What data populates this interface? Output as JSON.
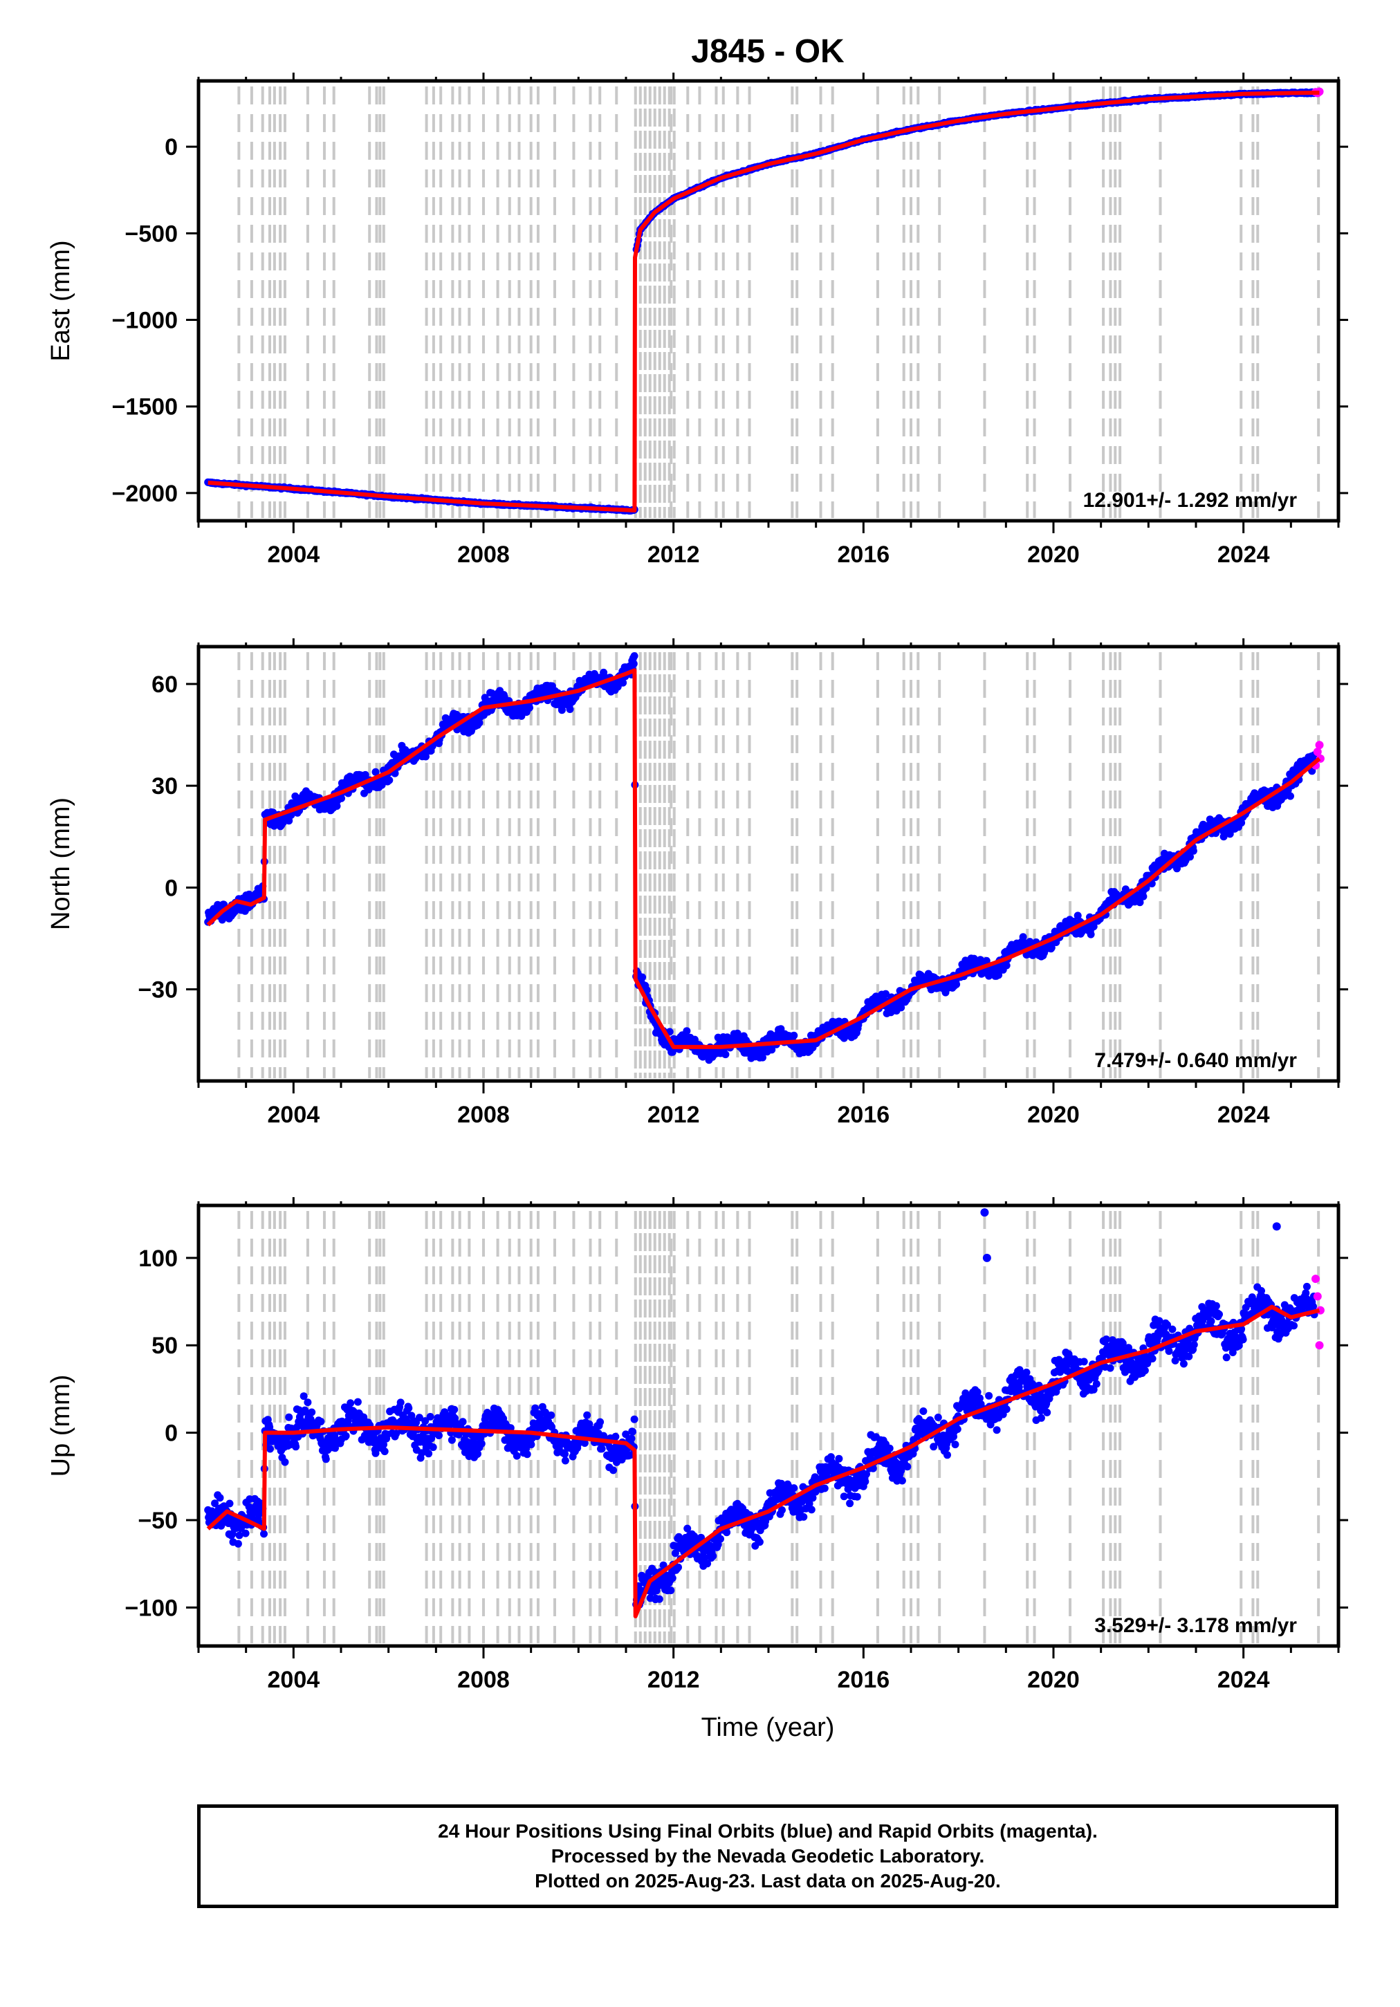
{
  "title": "J845 - OK",
  "colors": {
    "final": "#0000ff",
    "rapid": "#ff00ff",
    "model": "#ff0000",
    "events": "#c8c8c8"
  },
  "xaxis": {
    "label": "Time (year)",
    "range": [
      2002.0,
      2026.0
    ],
    "ticks": [
      "2004",
      "2008",
      "2012",
      "2016",
      "2020",
      "2024"
    ],
    "tick_values": [
      2004,
      2008,
      2012,
      2016,
      2020,
      2024
    ]
  },
  "event_lines": [
    2002.85,
    2003.12,
    2003.35,
    2003.5,
    2003.6,
    2003.72,
    2003.82,
    2004.3,
    2004.65,
    2004.85,
    2005.6,
    2005.75,
    2005.82,
    2005.9,
    2006.8,
    2006.95,
    2007.1,
    2007.35,
    2007.5,
    2007.7,
    2008.0,
    2008.3,
    2008.55,
    2008.75,
    2009.0,
    2009.15,
    2009.5,
    2009.9,
    2010.25,
    2010.45,
    2010.8,
    2011.95,
    2012.3,
    2012.55,
    2012.9,
    2013.05,
    2013.35,
    2013.6,
    2014.5,
    2014.6,
    2015.1,
    2015.35,
    2016.3,
    2016.85,
    2017.0,
    2017.15,
    2017.6,
    2018.55,
    2019.45,
    2019.6,
    2020.35,
    2021.05,
    2021.2,
    2021.3,
    2021.4,
    2022.25,
    2023.95,
    2024.2,
    2024.3,
    2025.58
  ],
  "event_band": [
    2011.2,
    2012.05
  ],
  "chart_data": [
    {
      "type": "scatter",
      "component": "east",
      "ylabel": "East (mm)",
      "ylim": [
        -2160,
        380
      ],
      "yticks": [
        "0",
        "−500",
        "−1000",
        "−1500",
        "−2000"
      ],
      "ytick_values": [
        0,
        -500,
        -1000,
        -1500,
        -2000
      ],
      "rate_label": "12.901+/- 1.292 mm/yr",
      "model": [
        [
          2002.2,
          -1940
        ],
        [
          2004,
          -1975
        ],
        [
          2006,
          -2020
        ],
        [
          2008,
          -2060
        ],
        [
          2010,
          -2085
        ],
        [
          2011.18,
          -2100
        ],
        [
          2011.19,
          -640
        ],
        [
          2011.3,
          -480
        ],
        [
          2011.6,
          -380
        ],
        [
          2012,
          -300
        ],
        [
          2013,
          -180
        ],
        [
          2014,
          -100
        ],
        [
          2015,
          -40
        ],
        [
          2016,
          40
        ],
        [
          2017,
          100
        ],
        [
          2018,
          150
        ],
        [
          2019,
          190
        ],
        [
          2020,
          220
        ],
        [
          2021,
          250
        ],
        [
          2022,
          275
        ],
        [
          2023,
          290
        ],
        [
          2024,
          305
        ],
        [
          2025,
          310
        ],
        [
          2025.6,
          312
        ]
      ],
      "scatter": 5,
      "rapid": [
        [
          2025.52,
          315
        ],
        [
          2025.56,
          310
        ],
        [
          2025.6,
          318
        ]
      ]
    },
    {
      "type": "scatter",
      "component": "north",
      "ylabel": "North (mm)",
      "ylim": [
        -57,
        71
      ],
      "yticks": [
        "60",
        "30",
        "0",
        "−30"
      ],
      "ytick_values": [
        60,
        30,
        0,
        -30
      ],
      "rate_label": "7.479+/- 0.640 mm/yr",
      "model": [
        [
          2002.2,
          -11
        ],
        [
          2002.5,
          -7
        ],
        [
          2002.8,
          -4
        ],
        [
          2003.1,
          -5
        ],
        [
          2003.38,
          -3
        ],
        [
          2003.4,
          20
        ],
        [
          2004,
          23
        ],
        [
          2005,
          28
        ],
        [
          2006,
          34
        ],
        [
          2007,
          44
        ],
        [
          2008,
          53
        ],
        [
          2009,
          55
        ],
        [
          2010,
          58
        ],
        [
          2011,
          63
        ],
        [
          2011.18,
          64
        ],
        [
          2011.2,
          -27
        ],
        [
          2011.5,
          -35
        ],
        [
          2012,
          -47
        ],
        [
          2013,
          -47
        ],
        [
          2014,
          -46
        ],
        [
          2015,
          -45
        ],
        [
          2016,
          -38
        ],
        [
          2017,
          -30
        ],
        [
          2018,
          -26
        ],
        [
          2019,
          -21
        ],
        [
          2020,
          -15
        ],
        [
          2021,
          -8
        ],
        [
          2022,
          2
        ],
        [
          2023,
          14
        ],
        [
          2024,
          22
        ],
        [
          2025,
          31
        ],
        [
          2025.6,
          38
        ]
      ],
      "scatter": 2.5,
      "rapid": [
        [
          2025.52,
          36
        ],
        [
          2025.56,
          40
        ],
        [
          2025.6,
          42
        ],
        [
          2025.62,
          38
        ]
      ]
    },
    {
      "type": "scatter",
      "component": "up",
      "ylabel": "Up (mm)",
      "ylim": [
        -122,
        130
      ],
      "yticks": [
        "100",
        "50",
        "0",
        "−50",
        "−100"
      ],
      "ytick_values": [
        100,
        50,
        0,
        -50,
        -100
      ],
      "rate_label": "3.529+/- 3.178 mm/yr",
      "model": [
        [
          2002.2,
          -55
        ],
        [
          2002.6,
          -45
        ],
        [
          2003.0,
          -50
        ],
        [
          2003.38,
          -55
        ],
        [
          2003.4,
          0
        ],
        [
          2004,
          0
        ],
        [
          2005,
          2
        ],
        [
          2006,
          3
        ],
        [
          2007,
          2
        ],
        [
          2008,
          1
        ],
        [
          2009,
          0
        ],
        [
          2010,
          -3
        ],
        [
          2011,
          -6
        ],
        [
          2011.18,
          -10
        ],
        [
          2011.2,
          -105
        ],
        [
          2011.5,
          -85
        ],
        [
          2012,
          -75
        ],
        [
          2013,
          -55
        ],
        [
          2014,
          -45
        ],
        [
          2015,
          -30
        ],
        [
          2016,
          -20
        ],
        [
          2017,
          -8
        ],
        [
          2018,
          8
        ],
        [
          2019,
          18
        ],
        [
          2020,
          28
        ],
        [
          2021,
          40
        ],
        [
          2022,
          47
        ],
        [
          2023,
          58
        ],
        [
          2024,
          62
        ],
        [
          2024.6,
          72
        ],
        [
          2025,
          66
        ],
        [
          2025.6,
          70
        ]
      ],
      "scatter": 9,
      "outliers": [
        [
          2018.55,
          126
        ],
        [
          2018.6,
          100
        ],
        [
          2024.7,
          118
        ]
      ],
      "rapid": [
        [
          2025.52,
          88
        ],
        [
          2025.56,
          78
        ],
        [
          2025.6,
          50
        ],
        [
          2025.62,
          70
        ]
      ]
    }
  ],
  "footer": {
    "line1": "24 Hour Positions Using Final Orbits (blue) and Rapid Orbits (magenta).",
    "line2": "Processed by the Nevada Geodetic Laboratory.",
    "line3": "Plotted on 2025-Aug-23. Last data on 2025-Aug-20."
  }
}
